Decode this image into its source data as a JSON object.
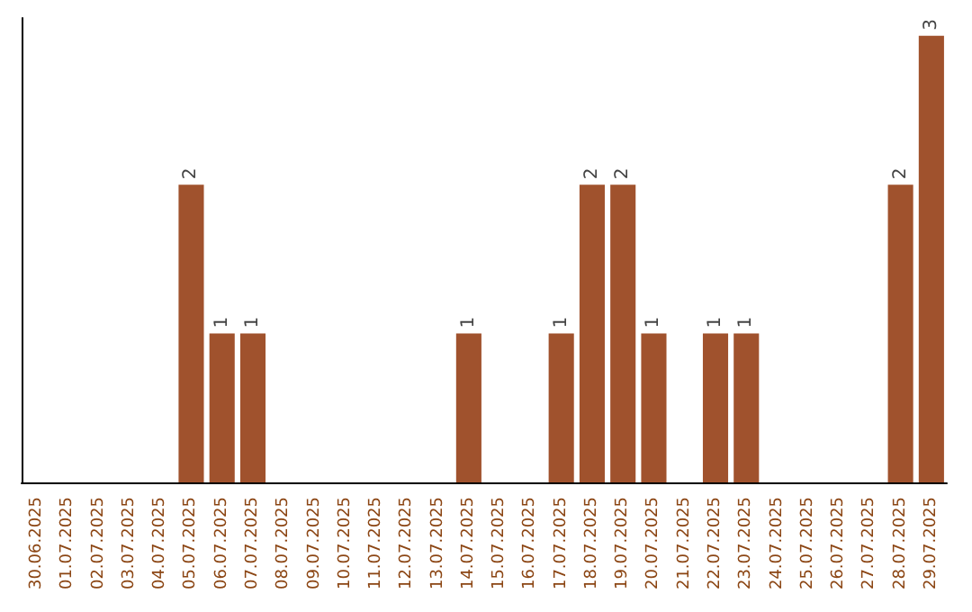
{
  "chart_data": {
    "type": "bar",
    "categories": [
      "30.06.2025",
      "01.07.2025",
      "02.07.2025",
      "03.07.2025",
      "04.07.2025",
      "05.07.2025",
      "06.07.2025",
      "07.07.2025",
      "08.07.2025",
      "09.07.2025",
      "10.07.2025",
      "11.07.2025",
      "12.07.2025",
      "13.07.2025",
      "14.07.2025",
      "15.07.2025",
      "16.07.2025",
      "17.07.2025",
      "18.07.2025",
      "19.07.2025",
      "20.07.2025",
      "21.07.2025",
      "22.07.2025",
      "23.07.2025",
      "24.07.2025",
      "25.07.2025",
      "26.07.2025",
      "27.07.2025",
      "28.07.2025",
      "29.07.2025"
    ],
    "values": [
      0,
      0,
      0,
      0,
      0,
      2,
      1,
      1,
      0,
      0,
      0,
      0,
      0,
      0,
      1,
      0,
      0,
      1,
      2,
      2,
      1,
      0,
      1,
      1,
      0,
      0,
      0,
      0,
      2,
      3
    ],
    "value_labels": [
      null,
      null,
      null,
      null,
      null,
      "2",
      "1",
      "1",
      null,
      null,
      null,
      null,
      null,
      null,
      "1",
      null,
      null,
      "1",
      "2",
      "2",
      "1",
      null,
      "1",
      "1",
      null,
      null,
      null,
      null,
      "2",
      "3"
    ],
    "color": "#a0522d",
    "grid": false,
    "tick_labels": "x"
  }
}
